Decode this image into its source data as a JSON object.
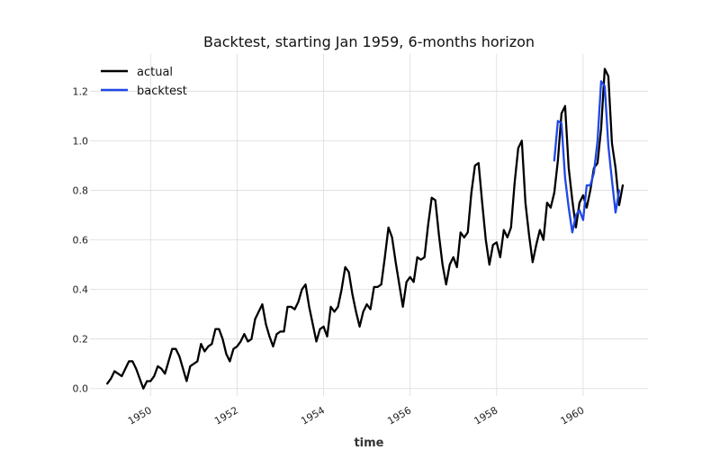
{
  "chart_data": {
    "type": "line",
    "title": "Backtest, starting Jan 1959, 6-months horizon",
    "xlabel": "time",
    "ylabel": "",
    "xlim": [
      1948.6,
      1961.5
    ],
    "ylim": [
      -0.03,
      1.35
    ],
    "x_ticks": [
      1950,
      1952,
      1954,
      1956,
      1958,
      1960
    ],
    "x_tick_labels": [
      "1950",
      "1952",
      "1954",
      "1956",
      "1958",
      "1960"
    ],
    "y_ticks": [
      0.0,
      0.2,
      0.4,
      0.6,
      0.8,
      1.0,
      1.2
    ],
    "y_tick_labels": [
      "0.0",
      "0.2",
      "0.4",
      "0.6",
      "0.8",
      "1.0",
      "1.2"
    ],
    "grid": true,
    "legend": {
      "position": "top-left",
      "entries": [
        "actual",
        "backtest"
      ]
    },
    "series": [
      {
        "name": "actual",
        "color": "#000000",
        "x_start": 1949.0,
        "x_step": 0.0833333,
        "values": [
          0.02,
          0.04,
          0.07,
          0.06,
          0.05,
          0.08,
          0.11,
          0.11,
          0.08,
          0.04,
          0.0,
          0.03,
          0.03,
          0.05,
          0.09,
          0.08,
          0.06,
          0.11,
          0.16,
          0.16,
          0.13,
          0.08,
          0.03,
          0.09,
          0.1,
          0.11,
          0.18,
          0.15,
          0.17,
          0.18,
          0.24,
          0.24,
          0.2,
          0.14,
          0.11,
          0.16,
          0.17,
          0.19,
          0.22,
          0.19,
          0.2,
          0.28,
          0.31,
          0.34,
          0.26,
          0.21,
          0.17,
          0.22,
          0.23,
          0.23,
          0.33,
          0.33,
          0.32,
          0.35,
          0.4,
          0.42,
          0.33,
          0.26,
          0.19,
          0.24,
          0.25,
          0.21,
          0.33,
          0.31,
          0.33,
          0.4,
          0.49,
          0.47,
          0.38,
          0.31,
          0.25,
          0.31,
          0.34,
          0.32,
          0.41,
          0.41,
          0.42,
          0.53,
          0.65,
          0.61,
          0.51,
          0.42,
          0.33,
          0.43,
          0.45,
          0.43,
          0.53,
          0.52,
          0.53,
          0.66,
          0.77,
          0.76,
          0.62,
          0.5,
          0.42,
          0.5,
          0.53,
          0.49,
          0.63,
          0.61,
          0.63,
          0.79,
          0.9,
          0.91,
          0.75,
          0.6,
          0.5,
          0.58,
          0.59,
          0.53,
          0.64,
          0.61,
          0.65,
          0.83,
          0.97,
          1.0,
          0.75,
          0.62,
          0.51,
          0.58,
          0.64,
          0.6,
          0.75,
          0.73,
          0.79,
          0.92,
          1.11,
          1.14,
          0.89,
          0.76,
          0.65,
          0.75,
          0.78,
          0.73,
          0.8,
          0.89,
          0.91,
          1.05,
          1.29,
          1.26,
          0.99,
          0.89,
          0.74,
          0.82
        ]
      },
      {
        "name": "backtest",
        "color": "#1f47e6",
        "x_start": 1959.3333,
        "x_step": 0.0833333,
        "values": [
          0.92,
          1.08,
          1.07,
          0.85,
          0.73,
          0.63,
          0.7,
          0.72,
          0.68,
          0.82,
          0.82,
          0.87,
          1.0,
          1.24,
          1.22,
          0.98,
          0.84,
          0.71,
          0.8
        ]
      }
    ]
  }
}
